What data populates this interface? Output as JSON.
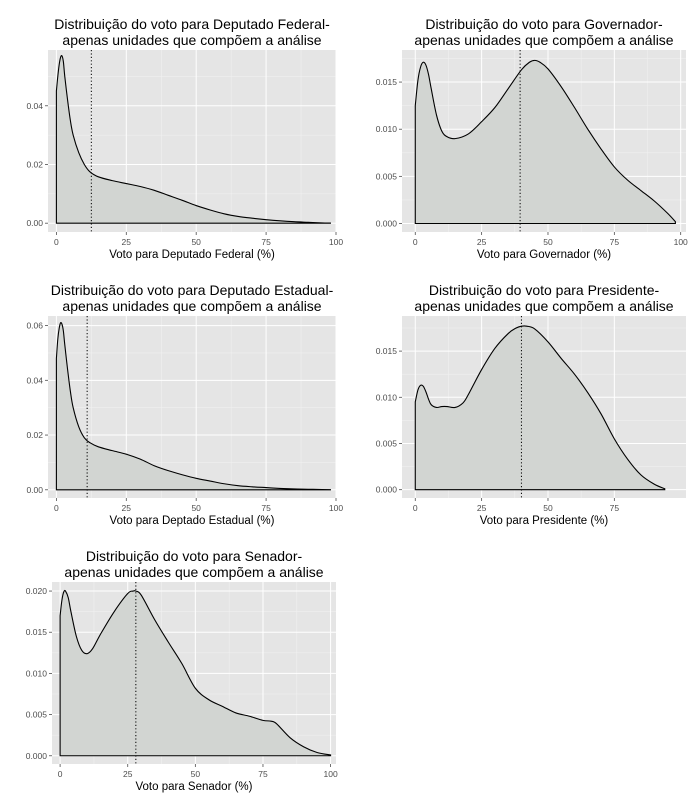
{
  "figure": {
    "background": "#ffffff",
    "panel_bg": "#e5e5e5",
    "grid_color": "#ffffff",
    "fill_color": "#d2d5d2",
    "line_color": "#000000",
    "axis_text_color": "#4d4d4d"
  },
  "chart_data": [
    {
      "type": "area",
      "title_line1": "Distribuição do voto para Deputado Federal-",
      "title_line2": "apenas unidades que compõem a análise",
      "xlabel": "Voto para Deputado Federal (%)",
      "ylabel": "",
      "xlim": [
        -3,
        100
      ],
      "ylim": [
        -0.003,
        0.059
      ],
      "xticks": [
        0,
        25,
        50,
        75,
        100
      ],
      "xtick_labels": [
        "0",
        "25",
        "50",
        "75",
        "100"
      ],
      "yticks": [
        0,
        0.02,
        0.04
      ],
      "ytick_labels": [
        "0.00",
        "0.02",
        "0.04"
      ],
      "vline_x": 12.5,
      "x": [
        0,
        0.5,
        1,
        1.5,
        2,
        2.5,
        3,
        4,
        5,
        6,
        8,
        10,
        12,
        15,
        20,
        25,
        30,
        35,
        40,
        45,
        50,
        55,
        60,
        65,
        70,
        75,
        80,
        85,
        90,
        95,
        98
      ],
      "y": [
        0.045,
        0.05,
        0.054,
        0.0565,
        0.057,
        0.055,
        0.05,
        0.042,
        0.035,
        0.03,
        0.024,
        0.02,
        0.0175,
        0.0158,
        0.0145,
        0.0135,
        0.0125,
        0.0112,
        0.0095,
        0.0078,
        0.006,
        0.0045,
        0.0032,
        0.0023,
        0.0017,
        0.0012,
        0.0008,
        0.0005,
        0.0003,
        0.0001,
        5e-05
      ],
      "grid": true,
      "legend": "none"
    },
    {
      "type": "area",
      "title_line1": "Distribuição do voto para Governador-",
      "title_line2": "apenas unidades que compõem a análise",
      "xlabel": "Voto para Governador (%)",
      "ylabel": "",
      "xlim": [
        -5,
        102
      ],
      "ylim": [
        -0.0009,
        0.0184
      ],
      "xticks": [
        0,
        25,
        50,
        75,
        100
      ],
      "xtick_labels": [
        "0",
        "25",
        "50",
        "75",
        "100"
      ],
      "yticks": [
        0,
        0.005,
        0.01,
        0.015
      ],
      "ytick_labels": [
        "0.000",
        "0.005",
        "0.010",
        "0.015"
      ],
      "vline_x": 39.5,
      "x": [
        0,
        1,
        2,
        3,
        4,
        5,
        6,
        8,
        10,
        12,
        15,
        20,
        25,
        30,
        35,
        40,
        43,
        45,
        47,
        50,
        55,
        60,
        65,
        70,
        75,
        80,
        85,
        90,
        95,
        98
      ],
      "y": [
        0.0125,
        0.0152,
        0.0166,
        0.0171,
        0.0168,
        0.0158,
        0.0143,
        0.0115,
        0.0098,
        0.0092,
        0.009,
        0.0095,
        0.0108,
        0.0123,
        0.0143,
        0.0163,
        0.0171,
        0.0173,
        0.0171,
        0.0164,
        0.0145,
        0.0123,
        0.01,
        0.0079,
        0.006,
        0.0046,
        0.0035,
        0.0024,
        0.0011,
        0.0002
      ],
      "grid": true,
      "legend": "none"
    },
    {
      "type": "area",
      "title_line1": "Distribuição do voto para Deputado Estadual-",
      "title_line2": "apenas unidades que compõem a análise",
      "xlabel": "Voto para Deptado Estadual (%)",
      "ylabel": "",
      "xlim": [
        -3,
        100
      ],
      "ylim": [
        -0.003,
        0.0635
      ],
      "xticks": [
        0,
        25,
        50,
        75,
        100
      ],
      "xtick_labels": [
        "0",
        "25",
        "50",
        "75",
        "100"
      ],
      "yticks": [
        0,
        0.02,
        0.04,
        0.06
      ],
      "ytick_labels": [
        "0.00",
        "0.02",
        "0.04",
        "0.06"
      ],
      "vline_x": 11,
      "x": [
        0,
        0.5,
        1,
        1.5,
        2,
        2.5,
        3,
        4,
        5,
        6,
        8,
        10,
        12,
        15,
        20,
        25,
        30,
        35,
        40,
        45,
        50,
        55,
        60,
        65,
        70,
        75,
        80,
        85,
        90,
        95,
        98
      ],
      "y": [
        0.048,
        0.055,
        0.059,
        0.061,
        0.0605,
        0.058,
        0.053,
        0.044,
        0.036,
        0.03,
        0.023,
        0.019,
        0.0172,
        0.0157,
        0.0143,
        0.013,
        0.0112,
        0.0088,
        0.007,
        0.0055,
        0.0042,
        0.0032,
        0.0022,
        0.0015,
        0.0011,
        0.0008,
        0.0005,
        0.0003,
        0.0002,
        0.0001,
        5e-05
      ],
      "grid": true,
      "legend": "none"
    },
    {
      "type": "area",
      "title_line1": "Distribuição do voto para Presidente-",
      "title_line2": "apenas unidades que compõem a análise",
      "xlabel": "Voto para Presidente (%)",
      "ylabel": "",
      "xlim": [
        -5,
        102
      ],
      "ylim": [
        -0.0009,
        0.0188
      ],
      "xticks": [
        0,
        25,
        50,
        75
      ],
      "xtick_labels": [
        "0",
        "25",
        "50",
        "75"
      ],
      "yticks": [
        0,
        0.005,
        0.01,
        0.015
      ],
      "ytick_labels": [
        "0.000",
        "0.005",
        "0.010",
        "0.015"
      ],
      "vline_x": 40,
      "x": [
        0,
        1,
        2,
        3,
        4,
        5,
        6,
        8,
        10,
        12,
        15,
        18,
        20,
        25,
        30,
        35,
        38,
        40,
        42,
        45,
        50,
        55,
        60,
        65,
        70,
        75,
        80,
        85,
        90,
        94
      ],
      "y": [
        0.0095,
        0.0108,
        0.0113,
        0.0112,
        0.0106,
        0.0098,
        0.0092,
        0.0089,
        0.009,
        0.009,
        0.0089,
        0.0094,
        0.0103,
        0.013,
        0.0153,
        0.0169,
        0.0175,
        0.0177,
        0.0177,
        0.0174,
        0.016,
        0.0142,
        0.0125,
        0.0105,
        0.0082,
        0.0055,
        0.0033,
        0.0016,
        0.0006,
        0.0001
      ],
      "grid": true,
      "legend": "none"
    },
    {
      "type": "area",
      "title_line1": "Distribuição do voto para Senador-",
      "title_line2": "apenas unidades que compõem a análise",
      "xlabel": "Voto para Senador (%)",
      "ylabel": "",
      "xlim": [
        -3,
        102
      ],
      "ylim": [
        -0.001,
        0.0211
      ],
      "xticks": [
        0,
        25,
        50,
        75,
        100
      ],
      "xtick_labels": [
        "0",
        "25",
        "50",
        "75",
        "100"
      ],
      "yticks": [
        0,
        0.005,
        0.01,
        0.015,
        0.02
      ],
      "ytick_labels": [
        "0.000",
        "0.005",
        "0.010",
        "0.015",
        "0.020"
      ],
      "vline_x": 28,
      "x": [
        0,
        0.5,
        1,
        1.5,
        2,
        3,
        4,
        6,
        8,
        10,
        12,
        15,
        20,
        25,
        27,
        28,
        30,
        35,
        40,
        45,
        50,
        55,
        60,
        65,
        70,
        75,
        78,
        80,
        85,
        90,
        95,
        100
      ],
      "y": [
        0.017,
        0.0185,
        0.0195,
        0.02,
        0.02,
        0.0192,
        0.0175,
        0.0145,
        0.0128,
        0.0124,
        0.013,
        0.0148,
        0.0175,
        0.0197,
        0.02,
        0.02,
        0.0195,
        0.0165,
        0.0138,
        0.0112,
        0.0082,
        0.0068,
        0.006,
        0.0052,
        0.0048,
        0.0043,
        0.0042,
        0.0039,
        0.0022,
        0.0011,
        0.0004,
        0.0001
      ],
      "grid": true,
      "legend": "none"
    }
  ]
}
